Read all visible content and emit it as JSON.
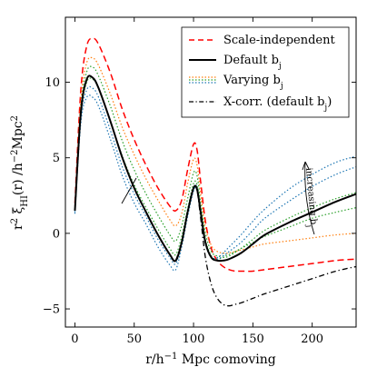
{
  "chart_data": {
    "type": "line",
    "xlabel": "r/h⁻¹ Mpc comoving",
    "ylabel": "r² ξ_HI(r) /h⁻²Mpc²",
    "xlim": [
      -8,
      237
    ],
    "ylim": [
      -6.2,
      14.3
    ],
    "xticks": [
      0,
      50,
      100,
      150,
      200
    ],
    "yticks": [
      -5,
      0,
      5,
      10
    ],
    "legend_position": "top-right",
    "annotation": "increasing b_j",
    "legend": [
      {
        "label": "Scale-independent",
        "style": "dashed",
        "color": "#ff0000"
      },
      {
        "label": "Default b_j",
        "style": "solid",
        "color": "#000000"
      },
      {
        "label": "Varying b_j",
        "style": "dotted",
        "color": "#2ca02c"
      },
      {
        "label": "X-corr. (default b_j)",
        "style": "dashdot",
        "color": "#000000"
      }
    ],
    "series": [
      {
        "name": "Scale-independent",
        "style": "dashed",
        "color": "#ff0000",
        "width": 1.5,
        "x": [
          0,
          5,
          10,
          15,
          20,
          30,
          40,
          50,
          60,
          70,
          80,
          85,
          90,
          95,
          100,
          103,
          106,
          110,
          115,
          120,
          125,
          130,
          135,
          140,
          150,
          160,
          180,
          200,
          220,
          237
        ],
        "y": [
          2.0,
          9.5,
          12.4,
          12.9,
          12.5,
          10.6,
          8.2,
          6.2,
          4.5,
          3.0,
          1.8,
          1.5,
          2.2,
          4.2,
          5.9,
          5.5,
          3.4,
          0.8,
          -1.0,
          -1.8,
          -2.2,
          -2.4,
          -2.5,
          -2.5,
          -2.5,
          -2.4,
          -2.2,
          -2.0,
          -1.8,
          -1.7
        ]
      },
      {
        "name": "Varying b_j 1",
        "style": "dotted",
        "color": "#ff7f0e",
        "width": 1.2,
        "x": [
          0,
          5,
          10,
          15,
          20,
          30,
          40,
          50,
          60,
          70,
          80,
          85,
          90,
          95,
          100,
          103,
          106,
          110,
          115,
          120,
          125,
          130,
          140,
          150,
          160,
          180,
          200,
          220,
          237
        ],
        "y": [
          1.8,
          8.8,
          11.3,
          11.6,
          11.1,
          9.2,
          7.0,
          5.2,
          3.6,
          2.2,
          0.9,
          0.5,
          1.3,
          3.3,
          4.9,
          4.5,
          2.6,
          0.4,
          -0.8,
          -1.2,
          -1.3,
          -1.3,
          -1.1,
          -0.9,
          -0.7,
          -0.5,
          -0.3,
          -0.1,
          0.0
        ]
      },
      {
        "name": "Varying b_j 2",
        "style": "dotted",
        "color": "#2ca02c",
        "width": 1.2,
        "x": [
          0,
          5,
          10,
          15,
          20,
          30,
          40,
          50,
          60,
          70,
          80,
          85,
          90,
          95,
          100,
          103,
          106,
          110,
          115,
          120,
          125,
          130,
          140,
          150,
          160,
          180,
          200,
          220,
          237
        ],
        "y": [
          1.6,
          8.3,
          10.7,
          11.0,
          10.4,
          8.4,
          6.1,
          4.2,
          2.6,
          1.2,
          -0.1,
          -0.5,
          0.5,
          2.3,
          4.0,
          3.8,
          2.0,
          0.0,
          -1.2,
          -1.5,
          -1.5,
          -1.4,
          -1.0,
          -0.6,
          -0.2,
          0.4,
          1.0,
          1.4,
          1.7
        ]
      },
      {
        "name": "Varying b_j 3",
        "style": "dotted",
        "color": "#2ca02c",
        "width": 1.2,
        "x": [
          0,
          5,
          10,
          15,
          20,
          30,
          40,
          50,
          60,
          70,
          80,
          85,
          90,
          95,
          100,
          103,
          106,
          110,
          115,
          120,
          125,
          130,
          140,
          150,
          160,
          180,
          200,
          220,
          237
        ],
        "y": [
          1.5,
          7.8,
          10.0,
          10.2,
          9.6,
          7.4,
          5.1,
          3.2,
          1.7,
          0.3,
          -1.0,
          -1.4,
          -0.2,
          1.6,
          3.3,
          3.2,
          1.6,
          -0.4,
          -1.5,
          -1.7,
          -1.6,
          -1.5,
          -1.0,
          -0.4,
          0.2,
          1.0,
          1.7,
          2.3,
          2.7
        ]
      },
      {
        "name": "Varying b_j 4",
        "style": "dotted",
        "color": "#1f77b4",
        "width": 1.2,
        "x": [
          0,
          5,
          10,
          15,
          20,
          30,
          40,
          50,
          60,
          70,
          80,
          85,
          90,
          95,
          100,
          103,
          106,
          110,
          115,
          120,
          125,
          130,
          140,
          150,
          160,
          180,
          200,
          220,
          237
        ],
        "y": [
          1.4,
          7.6,
          9.5,
          9.6,
          9.0,
          6.8,
          4.4,
          2.6,
          1.1,
          -0.4,
          -1.6,
          -2.0,
          -0.6,
          1.3,
          3.0,
          3.0,
          1.4,
          -0.6,
          -1.6,
          -1.7,
          -1.5,
          -1.2,
          -0.6,
          0.2,
          1.0,
          2.1,
          3.1,
          3.9,
          4.4
        ]
      },
      {
        "name": "Varying b_j 5",
        "style": "dotted",
        "color": "#1f77b4",
        "width": 1.2,
        "x": [
          0,
          5,
          10,
          15,
          20,
          30,
          40,
          50,
          60,
          70,
          80,
          85,
          90,
          95,
          100,
          103,
          106,
          110,
          115,
          120,
          125,
          130,
          140,
          150,
          160,
          180,
          200,
          220,
          237
        ],
        "y": [
          1.3,
          7.3,
          9.0,
          9.0,
          8.4,
          6.2,
          3.8,
          2.0,
          0.6,
          -0.9,
          -2.1,
          -2.4,
          -0.9,
          1.1,
          2.8,
          2.9,
          1.3,
          -0.7,
          -1.6,
          -1.6,
          -1.3,
          -0.9,
          -0.1,
          0.8,
          1.6,
          2.9,
          3.9,
          4.7,
          5.1
        ]
      },
      {
        "name": "Default b_j",
        "style": "solid",
        "color": "#000000",
        "width": 2.0,
        "x": [
          0,
          5,
          10,
          15,
          20,
          30,
          40,
          50,
          60,
          70,
          80,
          85,
          90,
          95,
          100,
          103,
          106,
          110,
          115,
          120,
          125,
          130,
          140,
          150,
          160,
          180,
          200,
          220,
          237
        ],
        "y": [
          1.5,
          8.0,
          10.2,
          10.3,
          9.6,
          7.4,
          5.0,
          3.0,
          1.4,
          -0.1,
          -1.4,
          -1.8,
          -0.6,
          1.4,
          3.0,
          2.9,
          1.4,
          -0.6,
          -1.6,
          -1.8,
          -1.8,
          -1.7,
          -1.3,
          -0.7,
          -0.1,
          0.7,
          1.4,
          2.1,
          2.6
        ]
      },
      {
        "name": "X-corr. (default b_j)",
        "style": "dashdot",
        "color": "#000000",
        "width": 1.3,
        "x": [
          85,
          90,
          95,
          100,
          103,
          106,
          110,
          115,
          120,
          125,
          130,
          135,
          140,
          150,
          160,
          180,
          200,
          220,
          237
        ],
        "y": [
          -1.8,
          -0.6,
          1.4,
          3.0,
          2.8,
          1.0,
          -1.6,
          -3.4,
          -4.3,
          -4.7,
          -4.8,
          -4.7,
          -4.6,
          -4.3,
          -4.0,
          -3.5,
          -3.0,
          -2.5,
          -2.2
        ]
      }
    ]
  }
}
